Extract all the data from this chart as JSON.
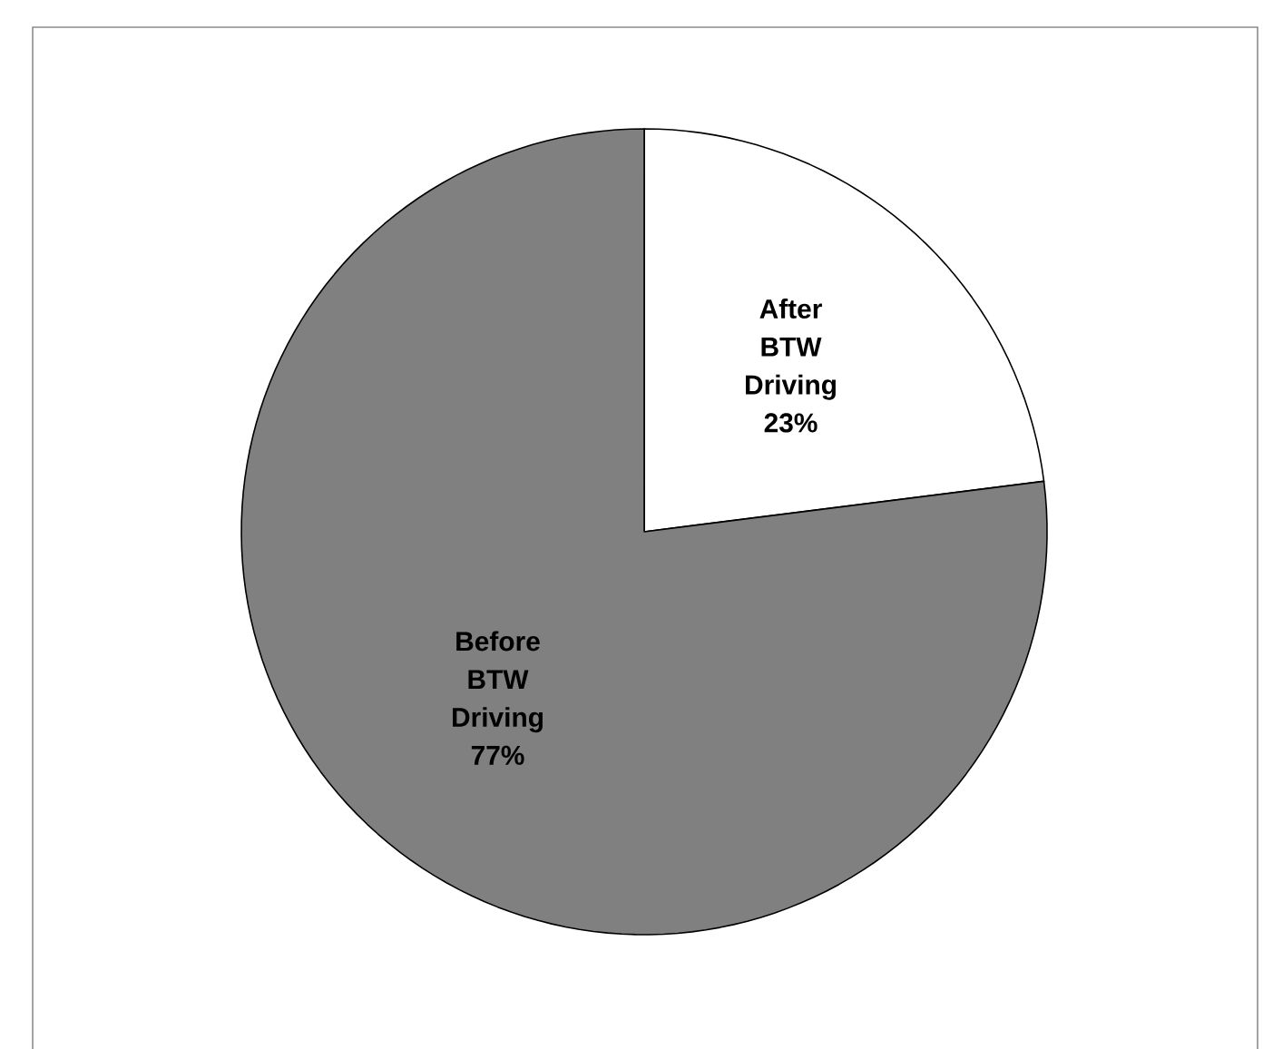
{
  "chart_data": {
    "type": "pie",
    "categories": [
      "After BTW Driving",
      "Before BTW Driving"
    ],
    "values": [
      23,
      77
    ],
    "colors": [
      "#ffffff",
      "#808080"
    ],
    "value_labels": [
      "23%",
      "77%"
    ]
  }
}
